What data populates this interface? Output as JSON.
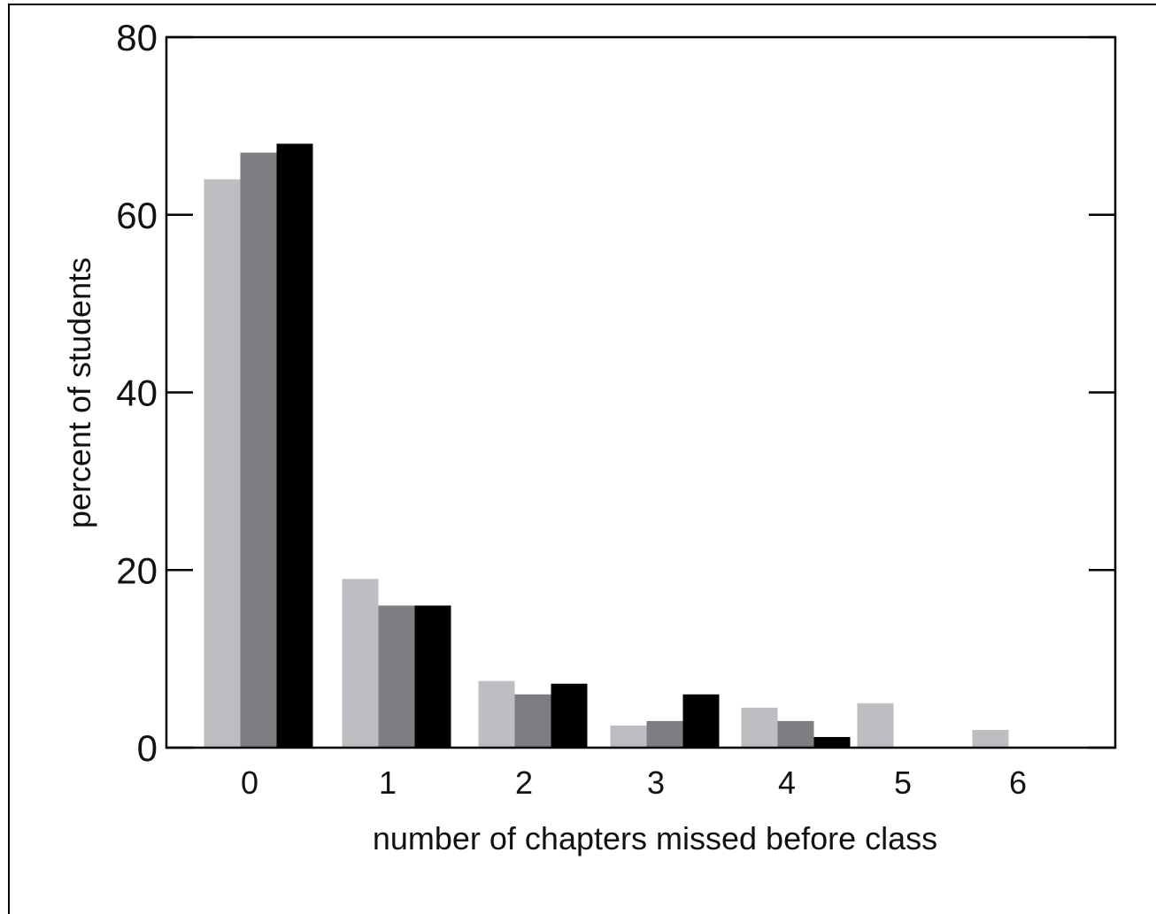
{
  "chart_data": {
    "type": "bar",
    "title": "",
    "xlabel": "number of chapters missed before class",
    "ylabel": "percent of students",
    "ylim": [
      0,
      80
    ],
    "yticks": [
      0,
      20,
      40,
      60,
      80
    ],
    "categories": [
      "0",
      "1",
      "2",
      "3",
      "4",
      "5",
      "6"
    ],
    "grid": false,
    "legend": "none",
    "series": [
      {
        "color": "#bdbec2",
        "values": [
          64,
          19,
          7.5,
          2.5,
          4.5,
          5,
          2
        ]
      },
      {
        "color": "#7d7e82",
        "values": [
          67,
          16,
          6,
          3,
          3,
          null,
          null
        ]
      },
      {
        "color": "#000000",
        "values": [
          68,
          16,
          7.2,
          6,
          1.2,
          null,
          null
        ]
      }
    ]
  }
}
